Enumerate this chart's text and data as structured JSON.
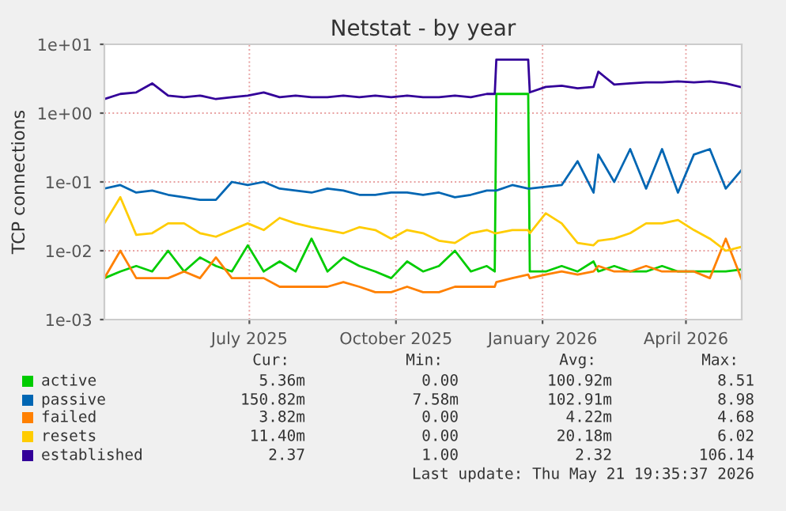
{
  "chart_data": {
    "type": "line",
    "title": "Netstat - by year",
    "ylabel": "TCP connections",
    "x": [
      "2025-04-16",
      "2025-04-26",
      "2025-05-06",
      "2025-05-16",
      "2025-05-26",
      "2025-06-05",
      "2025-06-15",
      "2025-06-25",
      "2025-07-05",
      "2025-07-15",
      "2025-07-25",
      "2025-08-04",
      "2025-08-14",
      "2025-08-24",
      "2025-09-03",
      "2025-09-13",
      "2025-09-23",
      "2025-10-03",
      "2025-10-13",
      "2025-10-23",
      "2025-11-02",
      "2025-11-12",
      "2025-11-22",
      "2025-12-02",
      "2025-12-12",
      "2025-12-17",
      "2025-12-18",
      "2025-12-28",
      "2026-01-07",
      "2026-01-08",
      "2026-01-18",
      "2026-01-28",
      "2026-02-07",
      "2026-02-17",
      "2026-02-20",
      "2026-03-02",
      "2026-03-12",
      "2026-03-22",
      "2026-04-01",
      "2026-04-11",
      "2026-04-21",
      "2026-05-01",
      "2026-05-11",
      "2026-05-21"
    ],
    "series": [
      {
        "name": "active",
        "color": "#00cc00",
        "values": [
          0.004,
          0.005,
          0.006,
          0.005,
          0.01,
          0.005,
          0.008,
          0.006,
          0.005,
          0.012,
          0.005,
          0.007,
          0.005,
          0.015,
          0.005,
          0.008,
          0.006,
          0.005,
          0.004,
          0.007,
          0.005,
          0.006,
          0.01,
          0.005,
          0.006,
          0.005,
          1.9,
          1.9,
          1.9,
          0.005,
          0.005,
          0.006,
          0.005,
          0.007,
          0.005,
          0.006,
          0.005,
          0.005,
          0.006,
          0.005,
          0.005,
          0.005,
          0.005,
          0.00536
        ]
      },
      {
        "name": "passive",
        "color": "#0066b3",
        "values": [
          0.08,
          0.09,
          0.07,
          0.075,
          0.065,
          0.06,
          0.055,
          0.055,
          0.1,
          0.09,
          0.1,
          0.08,
          0.075,
          0.07,
          0.08,
          0.075,
          0.065,
          0.065,
          0.07,
          0.07,
          0.065,
          0.07,
          0.06,
          0.065,
          0.075,
          0.075,
          0.075,
          0.09,
          0.08,
          0.08,
          0.085,
          0.09,
          0.2,
          0.07,
          0.25,
          0.1,
          0.3,
          0.08,
          0.3,
          0.07,
          0.25,
          0.3,
          0.08,
          0.15
        ]
      },
      {
        "name": "failed",
        "color": "#ff8000",
        "values": [
          0.004,
          0.01,
          0.004,
          0.004,
          0.004,
          0.005,
          0.004,
          0.008,
          0.004,
          0.004,
          0.004,
          0.003,
          0.003,
          0.003,
          0.003,
          0.0035,
          0.003,
          0.0025,
          0.0025,
          0.003,
          0.0025,
          0.0025,
          0.003,
          0.003,
          0.003,
          0.003,
          0.0035,
          0.004,
          0.0045,
          0.004,
          0.0045,
          0.005,
          0.0045,
          0.005,
          0.006,
          0.005,
          0.005,
          0.006,
          0.005,
          0.005,
          0.005,
          0.004,
          0.015,
          0.00382
        ]
      },
      {
        "name": "resets",
        "color": "#ffcc00",
        "values": [
          0.025,
          0.06,
          0.017,
          0.018,
          0.025,
          0.025,
          0.018,
          0.016,
          0.02,
          0.025,
          0.02,
          0.03,
          0.025,
          0.022,
          0.02,
          0.018,
          0.022,
          0.02,
          0.015,
          0.02,
          0.018,
          0.014,
          0.013,
          0.018,
          0.02,
          0.018,
          0.018,
          0.02,
          0.02,
          0.018,
          0.035,
          0.025,
          0.013,
          0.012,
          0.014,
          0.015,
          0.018,
          0.025,
          0.025,
          0.028,
          0.02,
          0.015,
          0.01,
          0.0114
        ]
      },
      {
        "name": "established",
        "color": "#330099",
        "values": [
          1.6,
          1.9,
          2.0,
          2.7,
          1.8,
          1.7,
          1.8,
          1.6,
          1.7,
          1.8,
          2.0,
          1.7,
          1.8,
          1.7,
          1.7,
          1.8,
          1.7,
          1.8,
          1.7,
          1.8,
          1.7,
          1.7,
          1.8,
          1.7,
          1.9,
          1.9,
          6.0,
          6.0,
          6.0,
          2.0,
          2.4,
          2.5,
          2.3,
          2.4,
          4.0,
          2.6,
          2.7,
          2.8,
          2.8,
          2.9,
          2.8,
          2.9,
          2.7,
          2.37
        ]
      }
    ],
    "log": true,
    "xlim": [
      "2025-04-16",
      "2026-05-21"
    ],
    "xticks": [
      {
        "value": "2025-07-16",
        "label": "July 2025"
      },
      {
        "value": "2025-10-16",
        "label": "October 2025"
      },
      {
        "value": "2026-01-16",
        "label": "January 2026"
      },
      {
        "value": "2026-04-16",
        "label": "April 2026"
      }
    ],
    "ylim": [
      0.001,
      10
    ],
    "yticks": [
      {
        "value": 0.001,
        "label": "1e-03"
      },
      {
        "value": 0.01,
        "label": "1e-02"
      },
      {
        "value": 0.1,
        "label": "1e-01"
      },
      {
        "value": 1,
        "label": "1e+00"
      },
      {
        "value": 10,
        "label": "1e+01"
      }
    ],
    "grid": true,
    "legend": "bottom",
    "annotations": [
      "Cur:",
      "Min:",
      "Avg:",
      "Max:",
      "5.36m",
      "0.00",
      "100.92m",
      "8.51",
      "150.82m",
      "7.58m",
      "102.91m",
      "8.98",
      "3.82m",
      "0.00",
      "4.22m",
      "4.68",
      "11.40m",
      "0.00",
      "20.18m",
      "6.02",
      "2.37",
      "1.00",
      "2.32",
      "106.14",
      "Last update: Thu May 21 19:35:37 2026"
    ]
  }
}
